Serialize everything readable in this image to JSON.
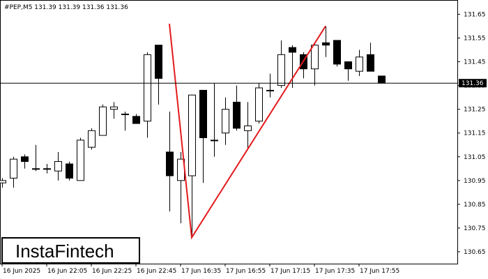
{
  "chart_data": {
    "type": "candlestick",
    "title": "#PEP,M5  131.39 131.39 131.36 131.36",
    "categories": [
      "16 Jun 2025",
      null,
      null,
      null,
      "16 Jun 22:05",
      null,
      null,
      null,
      "16 Jun 22:25",
      null,
      null,
      null,
      "16 Jun 22:45",
      null,
      null,
      null,
      "17 Jun 16:35",
      null,
      null,
      null,
      "17 Jun 16:55",
      null,
      null,
      null,
      "17 Jun 17:15",
      null,
      null,
      null,
      "17 Jun 17:35",
      null,
      null,
      null,
      "17 Jun 17:55",
      null,
      null
    ],
    "open": [
      130.94,
      130.96,
      131.05,
      131.0,
      131.0,
      130.99,
      131.02,
      130.95,
      131.09,
      131.14,
      131.25,
      131.23,
      131.22,
      131.2,
      131.52,
      131.07,
      130.95,
      130.97,
      131.33,
      131.12,
      131.15,
      131.28,
      131.16,
      131.2,
      131.33,
      131.35,
      131.51,
      131.48,
      131.42,
      131.53,
      131.54,
      131.45,
      131.41,
      131.48,
      131.39
    ],
    "high": [
      130.96,
      131.05,
      131.06,
      131.1,
      131.02,
      131.07,
      131.03,
      131.13,
      131.17,
      131.27,
      131.28,
      131.24,
      131.23,
      131.49,
      131.52,
      131.24,
      131.07,
      131.31,
      131.33,
      131.36,
      131.3,
      131.35,
      131.28,
      131.36,
      131.4,
      131.54,
      131.52,
      131.49,
      131.53,
      131.6,
      131.54,
      131.45,
      131.5,
      131.53,
      131.39
    ],
    "low": [
      130.92,
      130.92,
      131.0,
      130.99,
      130.98,
      130.95,
      130.95,
      130.95,
      131.08,
      131.14,
      131.21,
      131.16,
      131.19,
      131.13,
      131.27,
      130.82,
      130.77,
      130.71,
      130.94,
      131.05,
      131.1,
      131.16,
      131.08,
      131.19,
      131.3,
      131.34,
      131.34,
      131.38,
      131.35,
      131.47,
      131.43,
      131.37,
      131.39,
      131.41,
      131.36
    ],
    "close": [
      130.95,
      131.04,
      131.03,
      131.0,
      131.0,
      131.03,
      130.96,
      131.12,
      131.16,
      131.26,
      131.26,
      131.23,
      131.19,
      131.48,
      131.38,
      130.97,
      131.04,
      131.31,
      131.13,
      131.12,
      131.25,
      131.17,
      131.18,
      131.34,
      131.33,
      131.48,
      131.49,
      131.42,
      131.52,
      131.52,
      131.44,
      131.42,
      131.47,
      131.41,
      131.36
    ],
    "up_color": "#ffffff",
    "down_color": "#000000",
    "current_price": 131.36,
    "pattern": {
      "points": [
        15,
        17,
        29
      ],
      "values": [
        131.61,
        130.71,
        131.6
      ],
      "color": "#e31a1c"
    },
    "ylim": [
      130.6,
      131.71
    ],
    "yticks": [
      130.65,
      130.75,
      130.85,
      130.95,
      131.05,
      131.15,
      131.25,
      131.35,
      131.45,
      131.55,
      131.65
    ]
  },
  "watermark": "InstaFintech"
}
